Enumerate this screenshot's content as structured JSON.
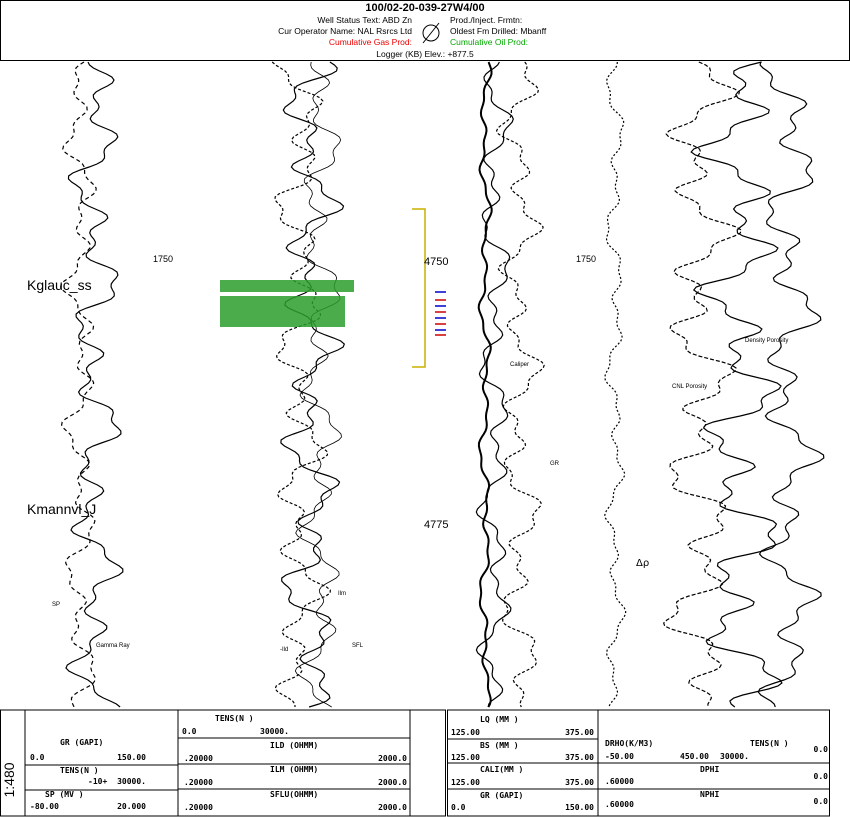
{
  "header": {
    "title": "100/02-20-039-27W4/00",
    "well_status": "Well Status Text: ABD Zn",
    "operator": "Cur Operator Name: NAL Rsrcs Ltd",
    "gas_prod": "Cumulative Gas Prod:",
    "prod_frmtn": "Prod./Inject. Frmtn:",
    "oldest_fm": "Oldest Fm Drilled: Mbanff",
    "oil_prod": "Cumulative Oil Prod:",
    "elevation": "Logger (KB) Elev.: +877.5"
  },
  "formations": [
    "Kglauc_ss",
    "Kmannvl_J"
  ],
  "depth_labels": [
    "1750",
    "4750",
    "1750",
    "4775"
  ],
  "scale": "1:480",
  "curve_labels": [
    "SP",
    "Gamma Ray",
    "Ilm",
    "-Ild",
    "SFL",
    "Density Porosity",
    "CNL Porosity",
    "GR",
    "Δρ",
    "Caliper"
  ],
  "log_header": {
    "track1": [
      "GR (GAPI)",
      "0.0",
      "150.00",
      "TENS(N )",
      "-10+",
      "30000.",
      "SP (MV )",
      "-80.00",
      "20.000"
    ],
    "track2": [
      "TENS(N )",
      "0.0",
      "30000.",
      "ILD (OHMM)",
      ".20000",
      "2000.0",
      "ILM (OHMM)",
      ".20000",
      "2000.0",
      "SFLU(OHMM)",
      ".20000",
      "2000.0"
    ],
    "track3": [
      "LQ (MM )",
      "125.00",
      "375.00",
      "BS (MM )",
      "125.00",
      "375.00",
      "CALI(MM )",
      "125.00",
      "375.00",
      "GR (GAPI)",
      "0.0",
      "150.00"
    ],
    "track4": [
      "DRHO(K/M3)",
      "TENS(N )",
      "-50.00",
      "450.00",
      "30000.",
      "0.0",
      "DPHI",
      ".60000",
      "0.0",
      "NPHI",
      ".60000",
      "0.0"
    ]
  }
}
